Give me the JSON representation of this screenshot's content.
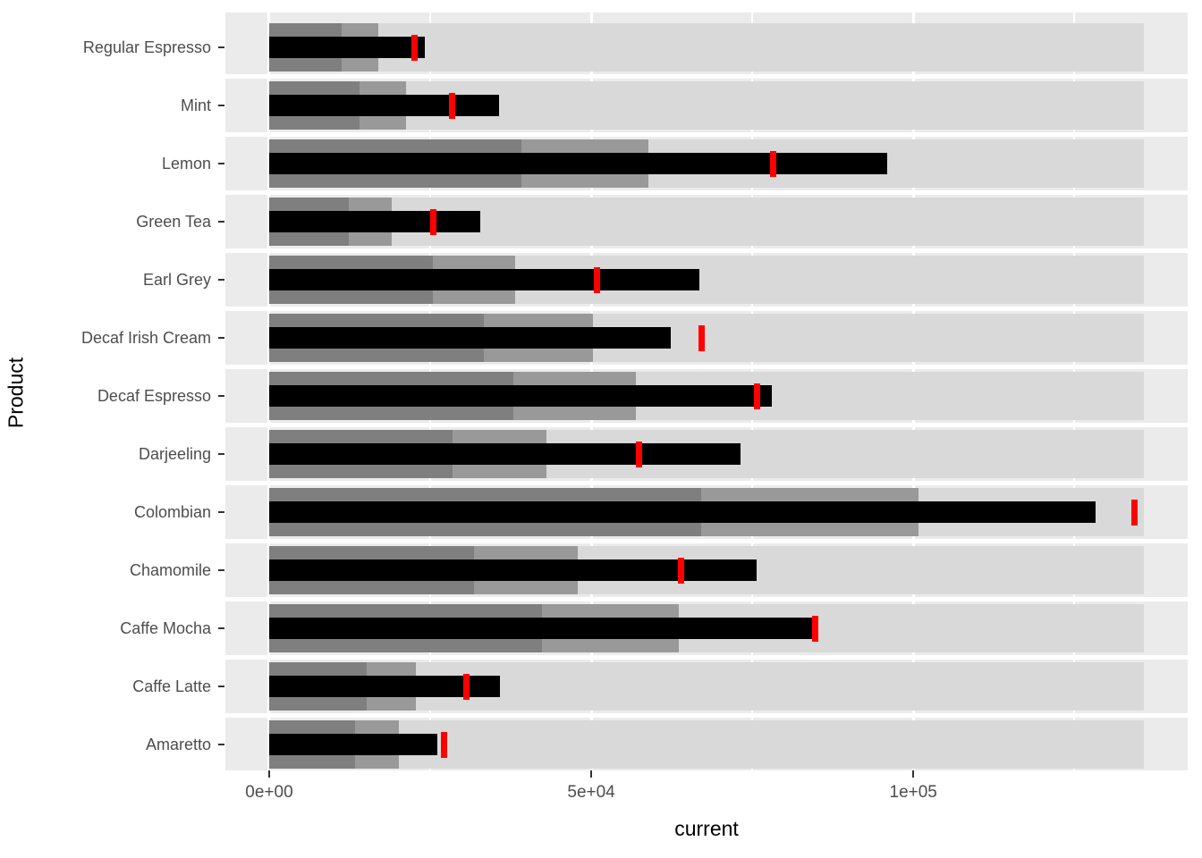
{
  "chart_data": {
    "type": "bar",
    "subtype": "bullet-chart",
    "orientation": "horizontal",
    "title": "",
    "xlabel": "current",
    "ylabel": "Product",
    "legend": "none",
    "grid": "on",
    "x_ticks": [
      {
        "label": "0e+00",
        "value": 0
      },
      {
        "label": "5e+04",
        "value": 50000
      },
      {
        "label": "1e+05",
        "value": 100000
      }
    ],
    "x_minor_tick_values": [
      25000,
      75000,
      125000
    ],
    "x_range_rendered": [
      -6800,
      142600
    ],
    "range_max_common": 135800,
    "categories_top_to_bottom": [
      "Regular Espresso",
      "Mint",
      "Lemon",
      "Green Tea",
      "Earl Grey",
      "Decaf Irish Cream",
      "Decaf Espresso",
      "Darjeeling",
      "Colombian",
      "Chamomile",
      "Caffe Mocha",
      "Caffe Latte",
      "Amaretto"
    ],
    "products": [
      {
        "name": "Regular Espresso",
        "ranges": [
          11300,
          16900,
          135800
        ],
        "current": 24100,
        "target": 22600
      },
      {
        "name": "Mint",
        "ranges": [
          14000,
          21200,
          135800
        ],
        "current": 35700,
        "target": 28400
      },
      {
        "name": "Lemon",
        "ranges": [
          39100,
          58900,
          135800
        ],
        "current": 95900,
        "target": 78300
      },
      {
        "name": "Green Tea",
        "ranges": [
          12400,
          19000,
          135800
        ],
        "current": 32800,
        "target": 25500
      },
      {
        "name": "Earl Grey",
        "ranges": [
          25400,
          38200,
          135800
        ],
        "current": 66800,
        "target": 50900
      },
      {
        "name": "Decaf Irish Cream",
        "ranges": [
          33300,
          50300,
          135800
        ],
        "current": 62400,
        "target": 67100
      },
      {
        "name": "Decaf Espresso",
        "ranges": [
          37900,
          56900,
          135800
        ],
        "current": 78000,
        "target": 75800
      },
      {
        "name": "Darjeeling",
        "ranges": [
          28400,
          43000,
          135800
        ],
        "current": 73200,
        "target": 57400
      },
      {
        "name": "Colombian",
        "ranges": [
          67100,
          100800,
          135800
        ],
        "current": 128300,
        "target": 134400
      },
      {
        "name": "Chamomile",
        "ranges": [
          31800,
          47900,
          135800
        ],
        "current": 75700,
        "target": 64000
      },
      {
        "name": "Caffe Mocha",
        "ranges": [
          42300,
          63600,
          135800
        ],
        "current": 84400,
        "target": 84800
      },
      {
        "name": "Caffe Latte",
        "ranges": [
          15200,
          22800,
          135800
        ],
        "current": 35800,
        "target": 30600
      },
      {
        "name": "Amaretto",
        "ranges": [
          13400,
          20200,
          135800
        ],
        "current": 26100,
        "target": 27100
      }
    ],
    "colors": {
      "range_dark": "#7f7f7f",
      "range_mid": "#999999",
      "range_light": "#d9d9d9",
      "measure": "#000000",
      "target": "#ff0000",
      "panel_background": "#ebebeb",
      "gridline": "#ffffff",
      "axis_text": "#4d4d4d",
      "axis_title": "#000000"
    }
  }
}
